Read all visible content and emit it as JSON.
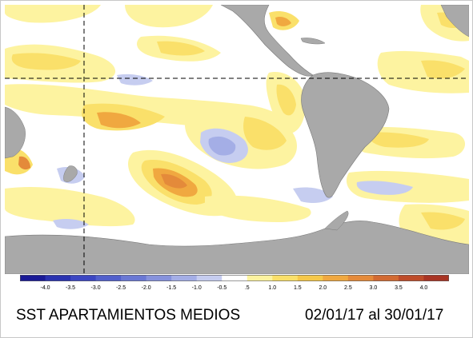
{
  "map": {
    "land_color": "#a9a9a9",
    "ocean_color": "#ffffff",
    "coast_color": "#7a7a7a",
    "guide_line_color": "#000000"
  },
  "legend": {
    "ticks": [
      "-4.0",
      "-3.5",
      "-3.0",
      "-2.5",
      "-2.0",
      "-1.5",
      "-1.0",
      "-0.5",
      ".5",
      "1.0",
      "1.5",
      "2.0",
      "2.5",
      "3.0",
      "3.5",
      "4.0"
    ],
    "colors": [
      "#1a1a96",
      "#2a32b0",
      "#3c46c2",
      "#5260cc",
      "#6a78d4",
      "#8692dc",
      "#a4aee6",
      "#c6cdf0",
      "#ffffff",
      "#fdf3a0",
      "#fae06a",
      "#f5c84a",
      "#f0a840",
      "#e48a3a",
      "#d26a32",
      "#be4c2a",
      "#a83424"
    ]
  },
  "caption": {
    "title": "SST APARTAMIENTOS MEDIOS",
    "period": "02/01/17 al 30/01/17"
  }
}
